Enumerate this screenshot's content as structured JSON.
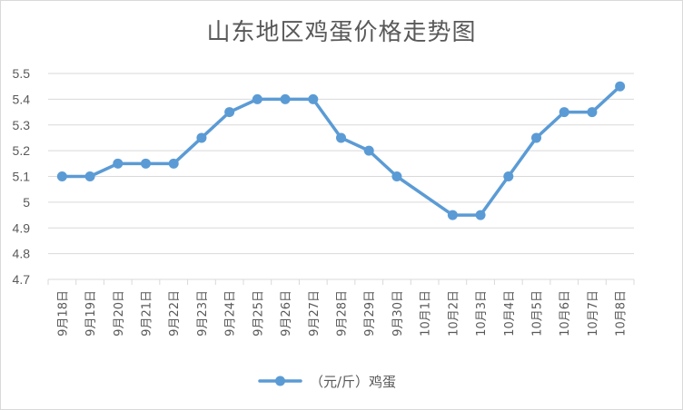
{
  "chart_data": {
    "type": "line",
    "title": "山东地区鸡蛋价格走势图",
    "categories": [
      "9月18日",
      "9月19日",
      "9月20日",
      "9月21日",
      "9月22日",
      "9月23日",
      "9月24日",
      "9月25日",
      "9月26日",
      "9月27日",
      "9月28日",
      "9月29日",
      "9月30日",
      "10月1日",
      "10月2日",
      "10月3日",
      "10月4日",
      "10月5日",
      "10月6日",
      "10月7日",
      "10月8日"
    ],
    "series": [
      {
        "name": "（元/斤）鸡蛋",
        "color": "#5b9bd5",
        "values": [
          5.1,
          5.1,
          5.15,
          5.15,
          5.15,
          5.25,
          5.35,
          5.4,
          5.4,
          5.4,
          5.25,
          5.2,
          5.1,
          null,
          4.95,
          4.95,
          5.1,
          5.25,
          5.35,
          5.35,
          5.45
        ]
      }
    ],
    "ylim": [
      4.7,
      5.5
    ],
    "yticks": [
      "4.7",
      "4.8",
      "4.9",
      "5",
      "5.1",
      "5.2",
      "5.3",
      "5.4",
      "5.5"
    ],
    "grid": true,
    "legend": "bottom",
    "xlabel": "",
    "ylabel": ""
  }
}
